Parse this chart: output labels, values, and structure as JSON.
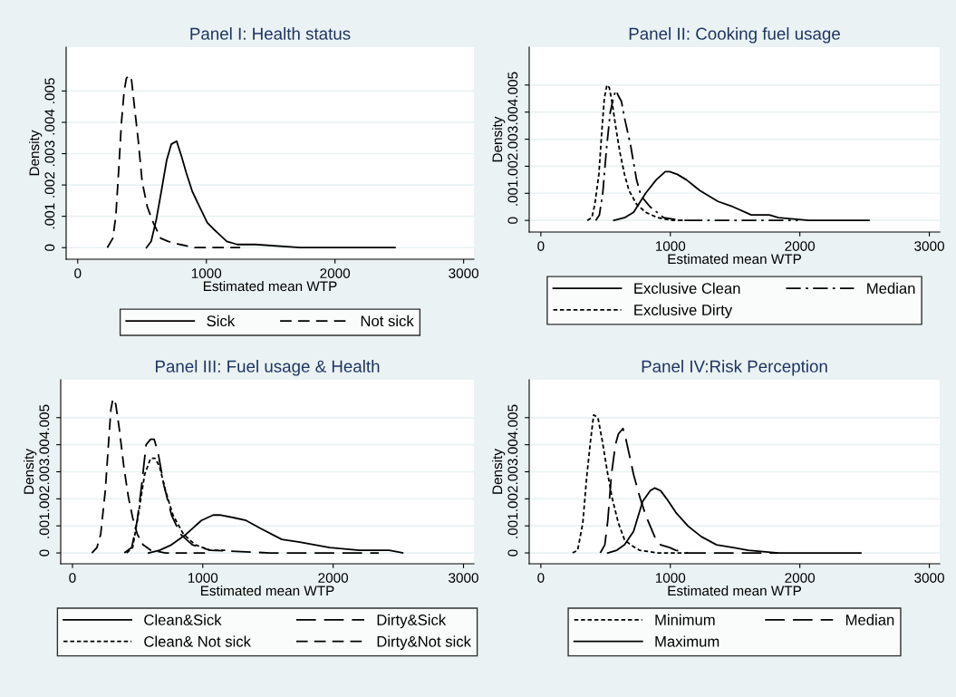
{
  "chart_data": [
    {
      "type": "line",
      "title": "Panel I: Health status",
      "xlabel": "Estimated mean WTP",
      "ylabel": "Density",
      "xlim": [
        -90,
        3080
      ],
      "xticks": [
        0,
        1000,
        2000,
        3000
      ],
      "ylim": [
        -0.00037,
        0.0064
      ],
      "yticks": [
        0,
        {
          "value": 0.001,
          "label": ".001"
        },
        {
          "value": 0.002,
          "label": ".002"
        },
        {
          "value": 0.003,
          "label": ".003"
        },
        {
          "value": 0.004,
          "label": ".004"
        },
        {
          "value": 0.005,
          "label": ".005"
        }
      ],
      "grid": "y",
      "legend": "bottom",
      "marker": "none",
      "series": [
        {
          "name": "Sick",
          "color": "#000000",
          "line_style": "solid",
          "x": [
            534,
            571,
            611,
            650,
            692,
            727,
            769,
            808,
            843,
            890,
            948,
            1007,
            1054,
            1159,
            1240,
            1380,
            1730,
            2466
          ],
          "values": [
            0,
            0.0002,
            0.0009,
            0.0018,
            0.0028,
            0.0033,
            0.0034,
            0.0029,
            0.0024,
            0.0018,
            0.0013,
            0.0008,
            0.0006,
            0.0002,
            0.0001,
            0.0001,
            0,
            0
          ]
        },
        {
          "name": "Not sick",
          "color": "#000000",
          "line_style": "dashed",
          "x": [
            230,
            273,
            296,
            319,
            340,
            361,
            378,
            397,
            417,
            441,
            471,
            501,
            541,
            587,
            645,
            704,
            797,
            913,
            1263
          ],
          "values": [
            0,
            0.0003,
            0.001,
            0.0025,
            0.004,
            0.005,
            0.0054,
            0.0055,
            0.0054,
            0.0045,
            0.0034,
            0.0021,
            0.0013,
            0.0008,
            0.0003,
            0.0002,
            0.0001,
            0,
            0
          ]
        }
      ]
    },
    {
      "type": "line",
      "title": "Panel II: Cooking fuel usage",
      "xlabel": "Estimated mean WTP",
      "ylabel": "Density",
      "xlim": [
        -90,
        3080
      ],
      "xticks": [
        0,
        1000,
        2000,
        3000
      ],
      "ylim": [
        -0.00043,
        0.0064
      ],
      "yticks": [
        0,
        {
          "value": 0.001,
          "label": ".001"
        },
        {
          "value": 0.002,
          "label": ".002"
        },
        {
          "value": 0.003,
          "label": ".003"
        },
        {
          "value": 0.004,
          "label": ".004"
        },
        {
          "value": 0.005,
          "label": ".005"
        }
      ],
      "grid": "y",
      "legend": "bottom",
      "marker": "none",
      "series": [
        {
          "name": "Exclusive Clean",
          "color": "#000000",
          "line_style": "solid",
          "x": [
            564,
            646,
            716,
            809,
            891,
            961,
            995,
            1054,
            1124,
            1228,
            1368,
            1485,
            1625,
            1765,
            1834,
            2068,
            2534
          ],
          "values": [
            0,
            0.0001,
            0.0003,
            0.001,
            0.0015,
            0.0018,
            0.0018,
            0.0017,
            0.0015,
            0.0011,
            0.0007,
            0.0005,
            0.0002,
            0.0002,
            0.0001,
            0,
            0
          ]
        },
        {
          "name": "Median",
          "color": "#000000",
          "line_style": "dashdot",
          "x": [
            424,
            452,
            478,
            506,
            536,
            564,
            580,
            599,
            622,
            650,
            692,
            739,
            774,
            844,
            949,
            1089,
            1368,
            1986
          ],
          "values": [
            0,
            0.0002,
            0.001,
            0.0026,
            0.004,
            0.0046,
            0.0048,
            0.0046,
            0.0044,
            0.0037,
            0.0028,
            0.0015,
            0.0009,
            0.0005,
            0.0001,
            0,
            0,
            0
          ]
        },
        {
          "name": "Exclusive Dirty",
          "color": "#000000",
          "line_style": "dotted",
          "x": [
            359,
            394,
            417,
            448,
            471,
            490,
            510,
            529,
            552,
            580,
            611,
            646,
            681,
            739,
            809,
            902,
            1019,
            1135
          ],
          "values": [
            0,
            0.0001,
            0.0006,
            0.0017,
            0.0033,
            0.0045,
            0.005,
            0.0049,
            0.0043,
            0.0034,
            0.0025,
            0.0017,
            0.0011,
            0.0006,
            0.0003,
            0.0001,
            0,
            0
          ]
        }
      ]
    },
    {
      "type": "line",
      "title": "Panel III: Fuel usage & Health",
      "xlabel": "Estimated mean WTP",
      "ylabel": "Density",
      "xlim": [
        -90,
        3080
      ],
      "xticks": [
        0,
        1000,
        2000,
        3000
      ],
      "ylim": [
        -0.0004,
        0.0064
      ],
      "yticks": [
        0,
        {
          "value": 0.001,
          "label": ".001"
        },
        {
          "value": 0.002,
          "label": ".002"
        },
        {
          "value": 0.003,
          "label": ".003"
        },
        {
          "value": 0.004,
          "label": ".004"
        },
        {
          "value": 0.005,
          "label": ".005"
        }
      ],
      "grid": "y",
      "legend": "bottom",
      "marker": "none",
      "series": [
        {
          "name": "Clean&Sick",
          "color": "#000000",
          "line_style": "solid",
          "x": [
            584,
            668,
            760,
            874,
            989,
            1080,
            1137,
            1240,
            1332,
            1446,
            1606,
            1744,
            1973,
            2201,
            2430,
            2533
          ],
          "values": [
            0,
            0.0001,
            0.0003,
            0.0007,
            0.0012,
            0.0014,
            0.0014,
            0.0013,
            0.0012,
            0.0009,
            0.0005,
            0.0004,
            0.0002,
            0.0001,
            0.0001,
            0
          ]
        },
        {
          "name": "Dirty&Sick",
          "color": "#000000",
          "line_style": "longdash",
          "x": [
            398,
            455,
            497,
            531,
            565,
            600,
            627,
            657,
            702,
            760,
            828,
            920,
            1057,
            1515,
            2350
          ],
          "values": [
            0,
            0.0002,
            0.0012,
            0.0025,
            0.004,
            0.0042,
            0.0042,
            0.0037,
            0.0025,
            0.0014,
            0.0007,
            0.0003,
            0.0001,
            0,
            0
          ]
        },
        {
          "name": "Clean& Not sick",
          "color": "#000000",
          "line_style": "dotted",
          "x": [
            416,
            462,
            508,
            554,
            600,
            634,
            668,
            714,
            771,
            851,
            943,
            1057,
            1172
          ],
          "values": [
            0,
            0.0002,
            0.0015,
            0.0029,
            0.0035,
            0.0035,
            0.0032,
            0.0023,
            0.0014,
            0.0007,
            0.0003,
            0.0001,
            0.0001
          ]
        },
        {
          "name": "Dirty&Not sick",
          "color": "#000000",
          "line_style": "dashed",
          "x": [
            149,
            188,
            217,
            252,
            279,
            295,
            311,
            332,
            359,
            394,
            428,
            462,
            497,
            542,
            600,
            714,
            1057
          ],
          "values": [
            0,
            0.0002,
            0.0007,
            0.0023,
            0.0042,
            0.0053,
            0.0057,
            0.0055,
            0.0046,
            0.0032,
            0.0021,
            0.0013,
            0.0007,
            0.0003,
            0.0001,
            0,
            0
          ]
        }
      ]
    },
    {
      "type": "line",
      "title": "Panel IV:Risk Perception",
      "xlabel": "Estimated mean WTP",
      "ylabel": "Density",
      "xlim": [
        -90,
        3080
      ],
      "xticks": [
        0,
        1000,
        2000,
        3000
      ],
      "ylim": [
        -0.0004,
        0.0064
      ],
      "yticks": [
        0,
        {
          "value": 0.001,
          "label": ".001"
        },
        {
          "value": 0.002,
          "label": ".002"
        },
        {
          "value": 0.003,
          "label": ".003"
        },
        {
          "value": 0.004,
          "label": ".004"
        },
        {
          "value": 0.005,
          "label": ".005"
        }
      ],
      "grid": "y",
      "legend": "bottom",
      "marker": "none",
      "series": [
        {
          "name": "Minimum",
          "color": "#000000",
          "line_style": "dotted",
          "x": [
            245,
            284,
            324,
            354,
            385,
            408,
            441,
            476,
            517,
            552,
            599,
            645,
            692,
            762,
            902,
            1135
          ],
          "values": [
            0,
            0.0001,
            0.0011,
            0.0028,
            0.0042,
            0.0051,
            0.005,
            0.0041,
            0.0029,
            0.002,
            0.0011,
            0.0005,
            0.0003,
            0.0001,
            0,
            0
          ]
        },
        {
          "name": "Median",
          "color": "#000000",
          "line_style": "longdash",
          "x": [
            459,
            494,
            517,
            545,
            576,
            599,
            634,
            657,
            680,
            716,
            762,
            809,
            879,
            925,
            995,
            1042,
            1135,
            1834
          ],
          "values": [
            0,
            0.0003,
            0.0012,
            0.0029,
            0.004,
            0.0044,
            0.0046,
            0.0042,
            0.0037,
            0.0029,
            0.0021,
            0.0014,
            0.0006,
            0.0003,
            0.0002,
            0.0001,
            0,
            0
          ]
        },
        {
          "name": "Maximum",
          "color": "#000000",
          "line_style": "solid",
          "x": [
            517,
            587,
            646,
            716,
            786,
            844,
            879,
            925,
            972,
            1042,
            1135,
            1240,
            1357,
            1485,
            1601,
            1834,
            2471
          ],
          "values": [
            0,
            0.0001,
            0.0003,
            0.0008,
            0.0019,
            0.0023,
            0.0024,
            0.0023,
            0.002,
            0.0015,
            0.001,
            0.0006,
            0.0003,
            0.0002,
            0.0001,
            0,
            0
          ]
        }
      ]
    }
  ]
}
